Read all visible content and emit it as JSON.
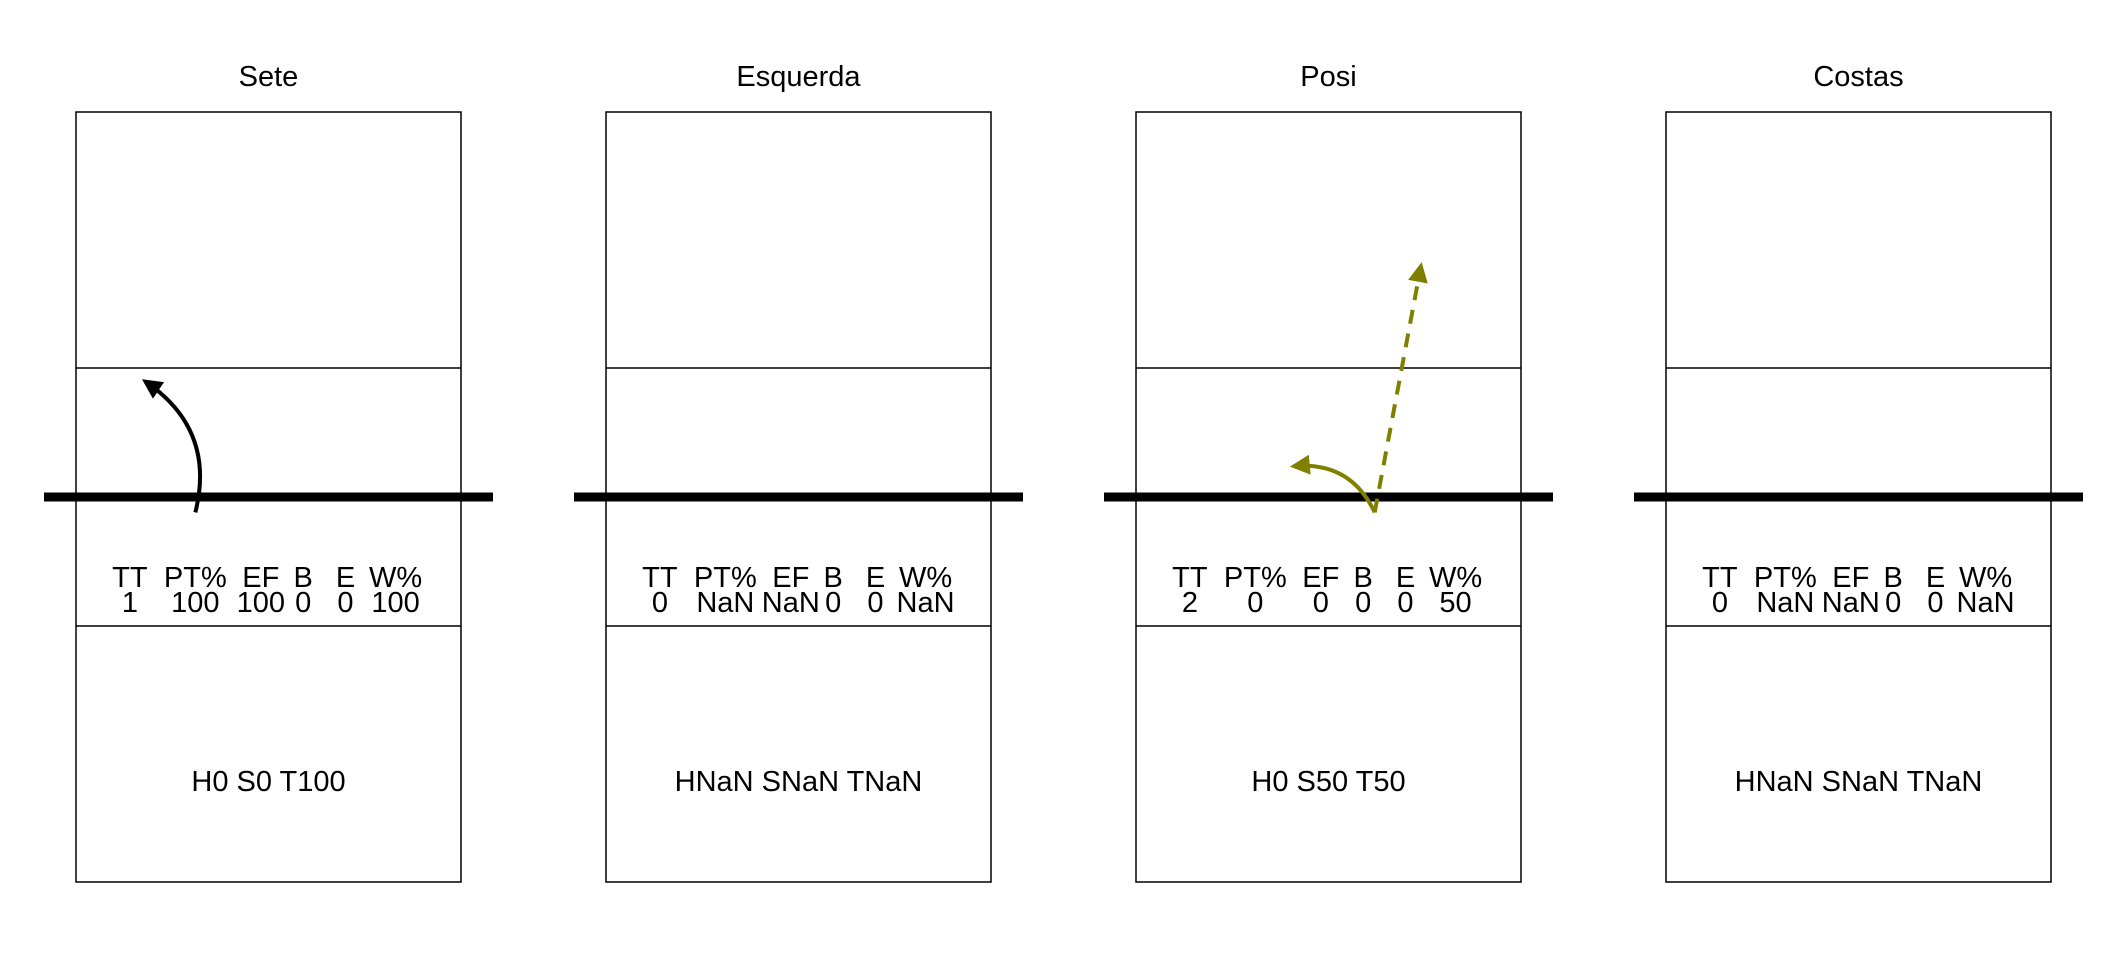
{
  "chart_data": {
    "type": "diagram",
    "stat_headers": [
      "TT",
      "PT%",
      "EF",
      "B",
      "E",
      "W%"
    ],
    "panels": [
      {
        "title": "Sete",
        "stats": [
          "1",
          "100",
          "100",
          "0",
          "0",
          "100"
        ],
        "summary": "H0 S0 T100",
        "arrows": [
          {
            "color": "#000000",
            "dashed": false,
            "from": [
              0.31,
              0.52
            ],
            "to": [
              0.18,
              0.35
            ],
            "curved": true
          }
        ]
      },
      {
        "title": "Esquerda",
        "stats": [
          "0",
          "NaN",
          "NaN",
          "0",
          "0",
          "NaN"
        ],
        "summary": "HNaN SNaN TNaN",
        "arrows": []
      },
      {
        "title": "Posi",
        "stats": [
          "2",
          "0",
          "0",
          "0",
          "0",
          "50"
        ],
        "summary": "H0 S50 T50",
        "arrows": [
          {
            "color": "#7f7f00",
            "dashed": true,
            "from": [
              0.62,
              0.52
            ],
            "to": [
              0.74,
              0.2
            ],
            "curved": false
          },
          {
            "color": "#7f7f00",
            "dashed": false,
            "from": [
              0.62,
              0.52
            ],
            "to": [
              0.41,
              0.46
            ],
            "curved": true
          }
        ]
      },
      {
        "title": "Costas",
        "stats": [
          "0",
          "NaN",
          "NaN",
          "0",
          "0",
          "NaN"
        ],
        "summary": "HNaN SNaN TNaN",
        "arrows": []
      }
    ]
  }
}
